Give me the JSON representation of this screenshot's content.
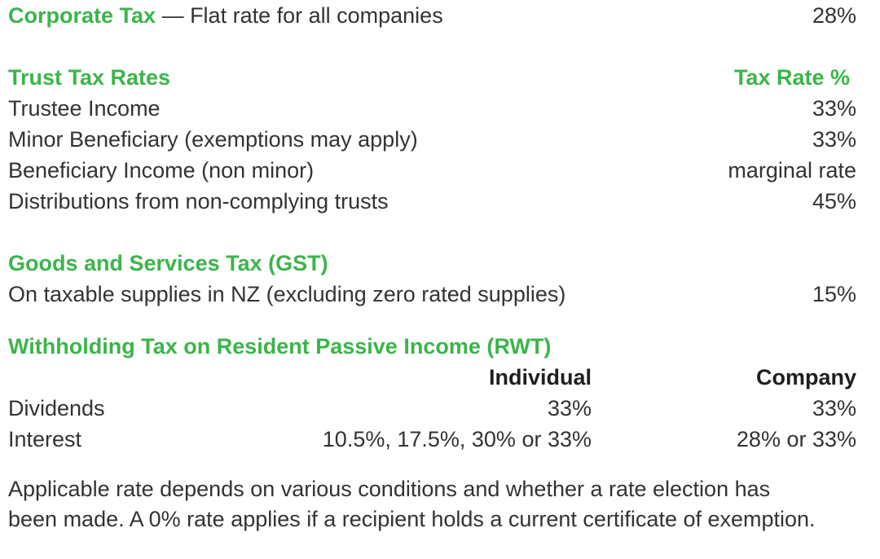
{
  "corporate": {
    "title": "Corporate Tax",
    "desc": "— Flat rate for all companies",
    "rate": "28%"
  },
  "trust": {
    "title": "Trust Tax Rates",
    "col_header": "Tax Rate %",
    "rows": [
      {
        "label": "Trustee Income",
        "rate": "33%"
      },
      {
        "label": "Minor Beneficiary (exemptions may apply)",
        "rate": "33%"
      },
      {
        "label": "Beneficiary Income (non minor)",
        "rate": "marginal rate"
      },
      {
        "label": "Distributions from non-complying trusts",
        "rate": "45%"
      }
    ]
  },
  "gst": {
    "title": "Goods and Services Tax (GST)",
    "rows": [
      {
        "label": "On taxable supplies in NZ (excluding zero rated supplies)",
        "rate": "15%"
      }
    ]
  },
  "rwt": {
    "title": "Withholding Tax on Resident Passive Income (RWT)",
    "col_individual": "Individual",
    "col_company": "Company",
    "rows": [
      {
        "label": "Dividends",
        "individual": "33%",
        "company": "33%"
      },
      {
        "label": "Interest",
        "individual": "10.5%, 17.5%, 30% or 33%",
        "company": "28% or 33%"
      }
    ]
  },
  "note": {
    "line1": "Applicable rate depends on various conditions and whether a rate election has",
    "line2": "been made. A 0% rate applies if a recipient holds a current certificate of exemption."
  }
}
